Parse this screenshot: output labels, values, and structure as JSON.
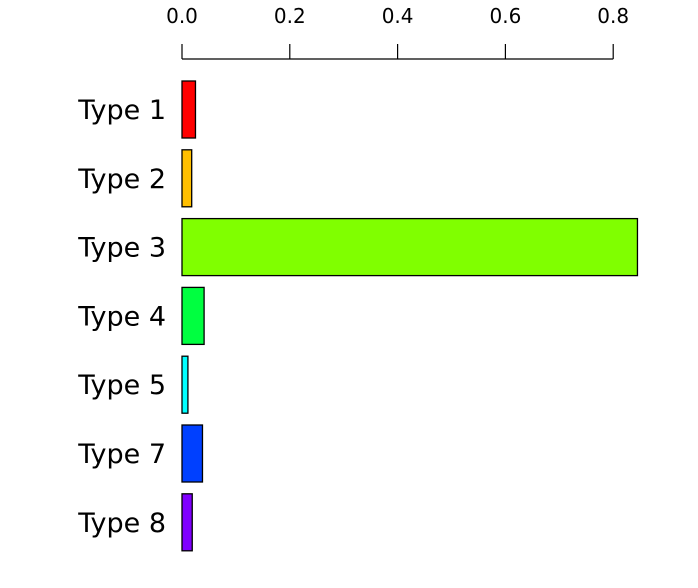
{
  "chart_data": {
    "type": "bar",
    "orientation": "horizontal",
    "categories": [
      "Type 1",
      "Type 2",
      "Type 3",
      "Type 4",
      "Type 5",
      "Type 7",
      "Type 8"
    ],
    "values": [
      0.025,
      0.018,
      0.845,
      0.041,
      0.011,
      0.038,
      0.019
    ],
    "colors": [
      "#FF0000",
      "#FFBF00",
      "#80FF00",
      "#00FF40",
      "#00FFFF",
      "#0040FF",
      "#8000FF"
    ],
    "title": "",
    "xlabel": "",
    "ylabel": "",
    "xaxis_position": "top",
    "xticks": [
      "0.0",
      "0.2",
      "0.4",
      "0.6",
      "0.8"
    ],
    "xlim": [
      0,
      0.845
    ],
    "grid": false,
    "legend": false
  }
}
